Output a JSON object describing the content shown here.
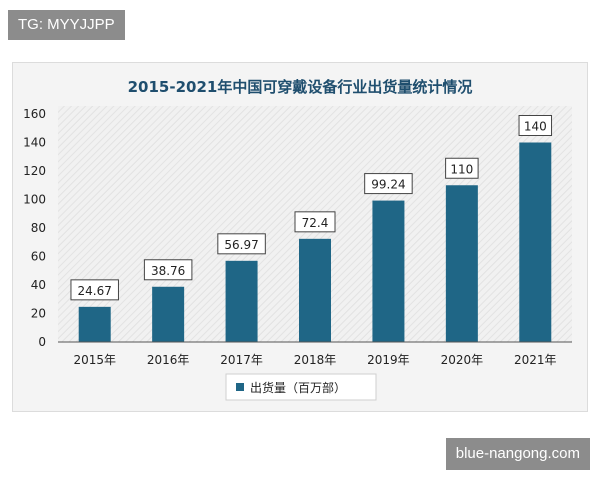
{
  "watermark_top": "TG: MYYJJPP",
  "watermark_bottom": "blue-nangong.com",
  "colors": {
    "bar": "#1f6686",
    "text": "#1f4e6e",
    "axis": "#222222"
  },
  "chart_data": {
    "type": "bar",
    "title": "2015-2021年中国可穿戴设备行业出货量统计情况",
    "categories": [
      "2015年",
      "2016年",
      "2017年",
      "2018年",
      "2019年",
      "2020年",
      "2021年"
    ],
    "series": [
      {
        "name": "出货量（百万部）",
        "values": [
          24.67,
          38.76,
          56.97,
          72.4,
          99.24,
          110,
          140
        ]
      }
    ],
    "value_labels": [
      "24.67",
      "38.76",
      "56.97",
      "72.4",
      "99.24",
      "110",
      "140"
    ],
    "yticks": [
      "0",
      "20",
      "40",
      "60",
      "80",
      "100",
      "120",
      "140",
      "160"
    ],
    "ylim": [
      0,
      160
    ],
    "grid": false,
    "legend_position": "bottom"
  }
}
